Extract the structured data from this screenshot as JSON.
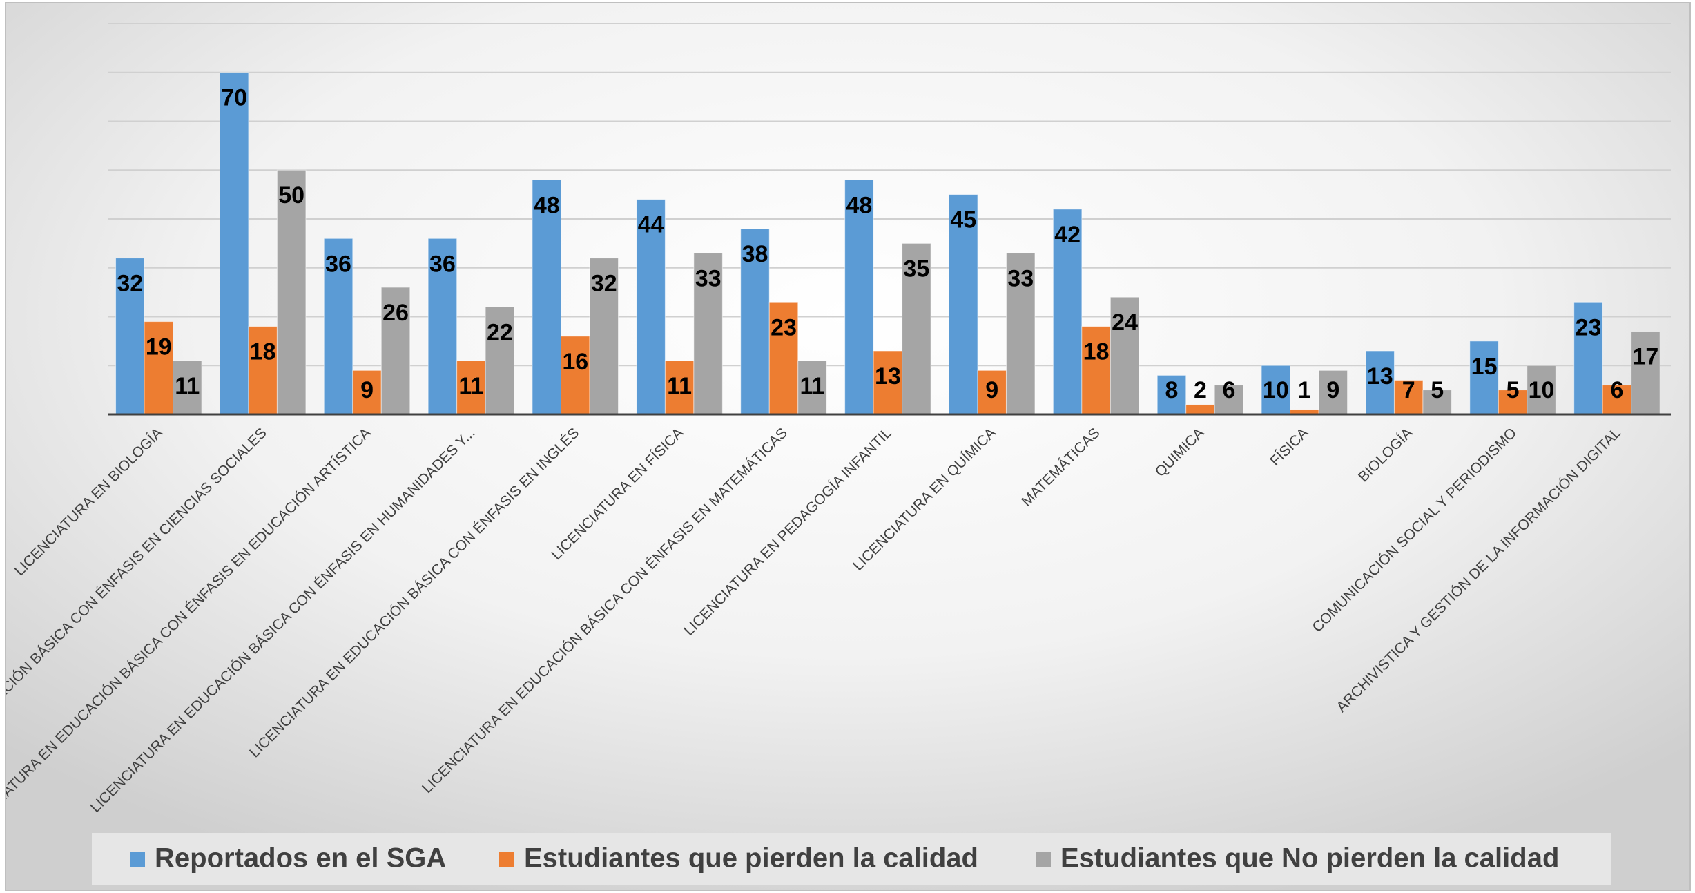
{
  "chart_data": {
    "type": "bar",
    "categories": [
      "LICENCIATURA EN BIOLOGÍA",
      "LICENCIATURA EN EDUCACIÓN BÁSICA CON ÉNFASIS EN CIENCIAS SOCIALES",
      "LICENCIATURA EN EDUCACIÓN BÁSICA CON ÉNFASIS EN EDUCACIÓN ARTÍSTICA",
      "LICENCIATURA EN EDUCACIÓN BÁSICA CON ÉNFASIS EN HUMANIDADES Y...",
      "LICENCIATURA EN EDUCACIÓN BÁSICA CON ÉNFASIS EN INGLÉS",
      "LICENCIATURA EN FÍSICA",
      "LICENCIATURA EN EDUCACIÓN BÁSICA CON ÉNFASIS EN MATEMÁTICAS",
      "LICENCIATURA EN PEDAGOGÍA INFANTIL",
      "LICENCIATURA EN QUÍMICA",
      "MATEMÁTICAS",
      "QUIMICA",
      "FÍSICA",
      "BIOLOGÍA",
      "COMUNICACIÓN SOCIAL Y PERIODISMO",
      "ARCHIVISTICA Y GESTIÓN DE LA INFORMACIÓN DIGITAL"
    ],
    "series": [
      {
        "name": "Reportados en el SGA",
        "color": "#5b9bd5",
        "values": [
          32,
          70,
          36,
          36,
          48,
          44,
          38,
          48,
          45,
          42,
          8,
          10,
          13,
          15,
          23
        ]
      },
      {
        "name": "Estudiantes que pierden la calidad",
        "color": "#ed7d31",
        "values": [
          19,
          18,
          9,
          11,
          16,
          11,
          23,
          13,
          9,
          18,
          2,
          1,
          7,
          5,
          6
        ]
      },
      {
        "name": "Estudiantes que No pierden la calidad",
        "color": "#a5a5a5",
        "values": [
          11,
          50,
          26,
          22,
          32,
          33,
          11,
          35,
          33,
          24,
          6,
          9,
          5,
          10,
          17
        ]
      }
    ],
    "ylim": [
      0,
      80
    ],
    "yticks": [
      0,
      10,
      20,
      30,
      40,
      50,
      60,
      70,
      80
    ],
    "grid": true,
    "legend": "bottom"
  }
}
